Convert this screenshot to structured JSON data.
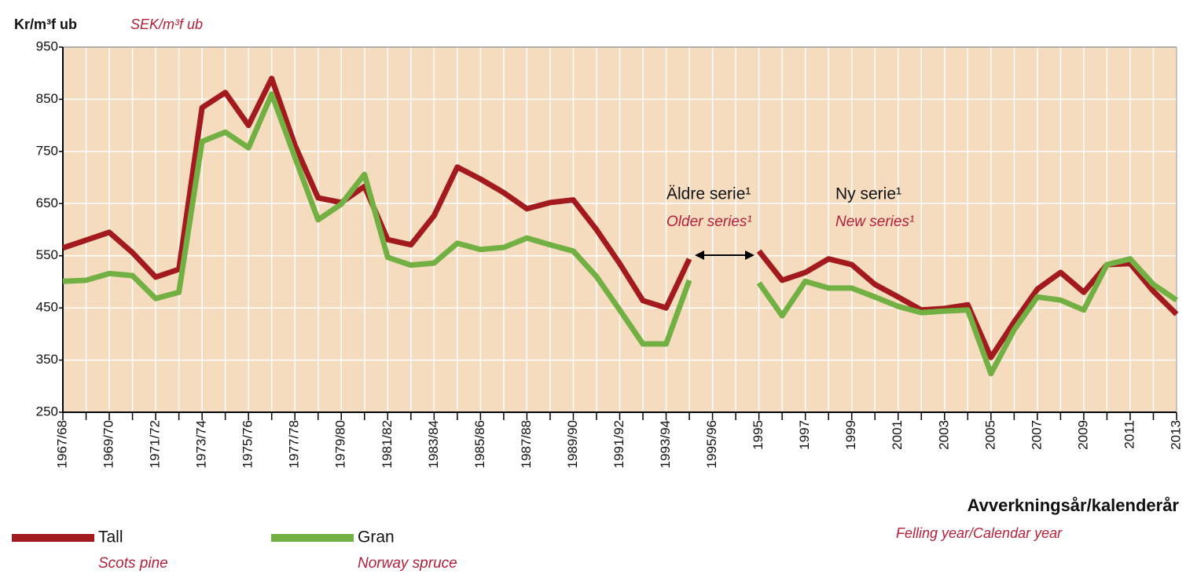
{
  "chart_data": {
    "type": "line",
    "y_title": "Kr/m³f ub",
    "y_title_en": "SEK/m³f ub",
    "x_title": "Avverkningsår/kalenderår",
    "x_title_en": "Felling year/Calendar year",
    "annotations": [
      {
        "text": "Äldre serie¹",
        "text_en": "Older series¹"
      },
      {
        "text": "Ny serie¹",
        "text_en": "New series¹"
      }
    ],
    "categories": [
      "1967/68",
      null,
      "1969/70",
      null,
      "1971/72",
      null,
      "1973/74",
      null,
      "1975/76",
      null,
      "1977/78",
      null,
      "1979/80",
      null,
      "1981/82",
      null,
      "1983/84",
      null,
      "1985/86",
      null,
      "1987/88",
      null,
      "1989/90",
      null,
      "1991/92",
      null,
      "1993/94",
      null,
      "1995/96",
      null,
      "1995",
      null,
      "1997",
      null,
      "1999",
      null,
      "2001",
      null,
      "2003",
      null,
      "2005",
      null,
      "2007",
      null,
      "2009",
      null,
      "2011",
      null,
      "2013"
    ],
    "series": [
      {
        "name": "Tall",
        "name_en": "Scots pine",
        "color": "#a31a1e",
        "values": [
          565,
          580,
          595,
          556,
          509,
          524,
          834,
          863,
          800,
          890,
          762,
          661,
          652,
          683,
          581,
          571,
          627,
          720,
          697,
          671,
          640,
          652,
          657,
          600,
          535,
          464,
          450,
          544,
          null,
          null,
          559,
          503,
          518,
          544,
          533,
          495,
          471,
          446,
          449,
          456,
          355,
          423,
          486,
          518,
          480,
          533,
          535,
          482,
          438
        ]
      },
      {
        "name": "Gran",
        "name_en": "Norway spruce",
        "color": "#72b043",
        "values": [
          501,
          503,
          516,
          512,
          468,
          480,
          769,
          787,
          757,
          860,
          739,
          619,
          649,
          706,
          547,
          532,
          536,
          574,
          562,
          566,
          584,
          571,
          559,
          510,
          446,
          381,
          381,
          503,
          null,
          null,
          498,
          435,
          501,
          488,
          488,
          471,
          453,
          441,
          444,
          446,
          324,
          408,
          471,
          465,
          446,
          533,
          544,
          495,
          465
        ]
      }
    ],
    "ylim": [
      250,
      950
    ],
    "yticks": [
      250,
      350,
      450,
      550,
      650,
      750,
      850,
      950
    ],
    "grid": true,
    "background": "#f5dcbf"
  }
}
